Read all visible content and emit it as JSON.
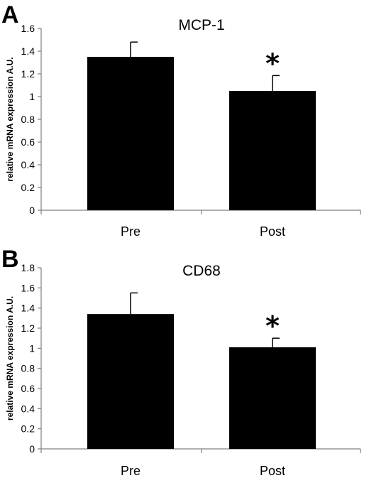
{
  "chart_data": [
    {
      "type": "bar",
      "panel": "A",
      "title": "MCP-1",
      "ylabel": "relative mRNA expression A.U.",
      "xlabel": "",
      "categories": [
        "Pre",
        "Post"
      ],
      "values": [
        1.35,
        1.05
      ],
      "errors": [
        0.13,
        0.135
      ],
      "annotations": [
        "",
        "*"
      ],
      "ylim": [
        0,
        1.6
      ],
      "yticks": [
        0,
        0.2,
        0.4,
        0.6,
        0.8,
        1,
        1.2,
        1.4,
        1.6
      ],
      "ytick_labels": [
        "0",
        "0.2",
        "0.4",
        "0.6",
        "0.8",
        "1",
        "1.2",
        "1.4",
        "1.6"
      ],
      "bar_color": "#000000",
      "grid": false,
      "legend": "none"
    },
    {
      "type": "bar",
      "panel": "B",
      "title": "CD68",
      "ylabel": "relative mRNA expression A.U.",
      "xlabel": "",
      "categories": [
        "Pre",
        "Post"
      ],
      "values": [
        1.34,
        1.01
      ],
      "errors": [
        0.21,
        0.09
      ],
      "annotations": [
        "",
        "*"
      ],
      "ylim": [
        0,
        1.8
      ],
      "yticks": [
        0,
        0.2,
        0.4,
        0.6,
        0.8,
        1,
        1.2,
        1.4,
        1.6,
        1.8
      ],
      "ytick_labels": [
        "0",
        "0.2",
        "0.4",
        "0.6",
        "0.8",
        "1",
        "1.2",
        "1.4",
        "1.6",
        "1.8"
      ],
      "bar_color": "#000000",
      "grid": false,
      "legend": "none"
    }
  ]
}
